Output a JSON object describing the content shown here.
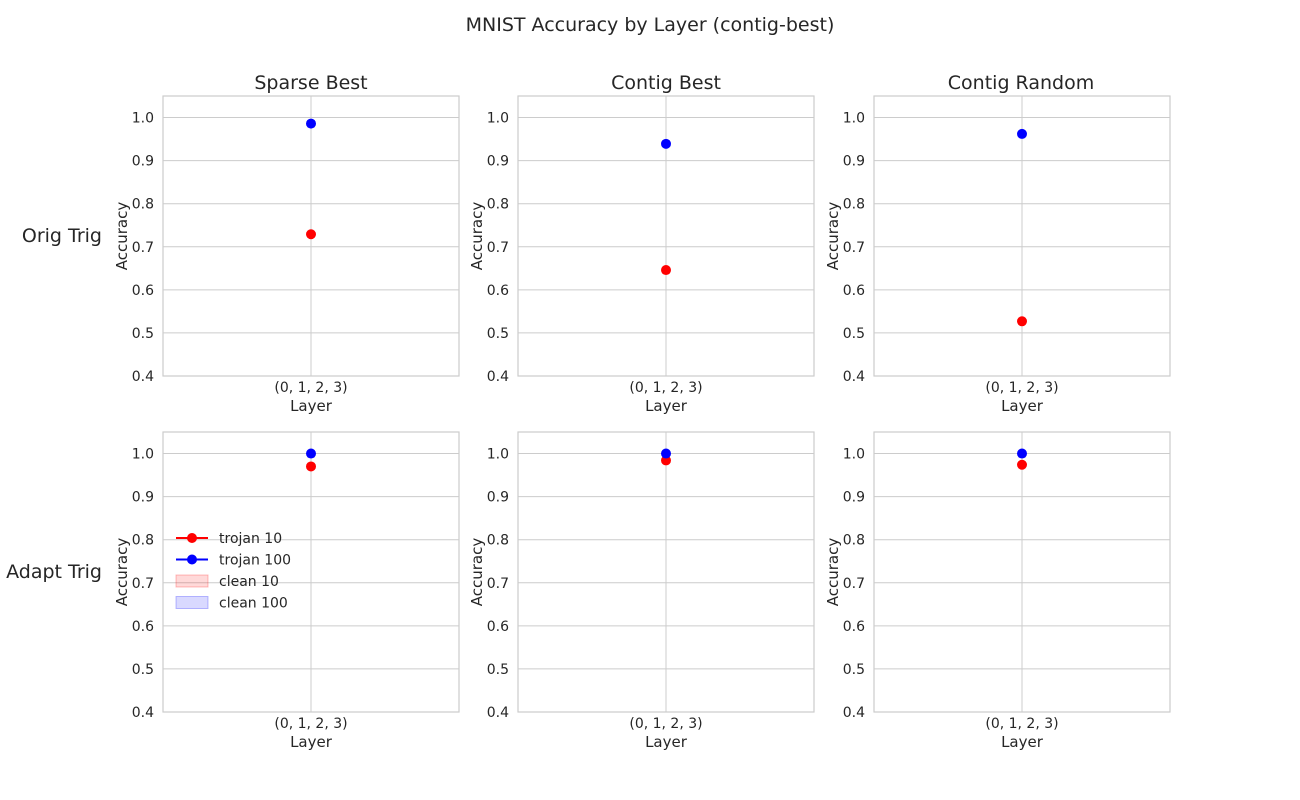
{
  "chart_data": {
    "type": "scatter",
    "title": "MNIST Accuracy by Layer (contig-best)",
    "columns": [
      "Sparse Best",
      "Contig Best",
      "Contig Random"
    ],
    "rows": [
      "Orig Trig",
      "Adapt Trig"
    ],
    "xlabel": "Layer",
    "ylabel": "Accuracy",
    "categories": [
      "(0, 1, 2, 3)"
    ],
    "ylim": [
      0.4,
      1.05
    ],
    "yticks": [
      "0.4",
      "0.5",
      "0.6",
      "0.7",
      "0.8",
      "0.9",
      "1.0"
    ],
    "grid": true,
    "legend": {
      "placement": "center-left of bottom-left panel",
      "entries": [
        {
          "label": "trojan 10",
          "color": "#ff0000",
          "kind": "line-marker"
        },
        {
          "label": "trojan 100",
          "color": "#0000ff",
          "kind": "line-marker"
        },
        {
          "label": "clean 10",
          "color": "#ff0000",
          "kind": "band"
        },
        {
          "label": "clean 100",
          "color": "#0000ff",
          "kind": "band"
        }
      ]
    },
    "panels": [
      {
        "row": "Orig Trig",
        "column": "Sparse Best",
        "series": [
          {
            "name": "trojan 10",
            "color": "#ff0000",
            "values": [
              0.729
            ]
          },
          {
            "name": "trojan 100",
            "color": "#0000ff",
            "values": [
              0.986
            ]
          }
        ]
      },
      {
        "row": "Orig Trig",
        "column": "Contig Best",
        "series": [
          {
            "name": "trojan 10",
            "color": "#ff0000",
            "values": [
              0.646
            ]
          },
          {
            "name": "trojan 100",
            "color": "#0000ff",
            "values": [
              0.939
            ]
          }
        ]
      },
      {
        "row": "Orig Trig",
        "column": "Contig Random",
        "series": [
          {
            "name": "trojan 10",
            "color": "#ff0000",
            "values": [
              0.527
            ]
          },
          {
            "name": "trojan 100",
            "color": "#0000ff",
            "values": [
              0.962
            ]
          }
        ]
      },
      {
        "row": "Adapt Trig",
        "column": "Sparse Best",
        "series": [
          {
            "name": "trojan 10",
            "color": "#ff0000",
            "values": [
              0.97
            ]
          },
          {
            "name": "trojan 100",
            "color": "#0000ff",
            "values": [
              1.0
            ]
          }
        ]
      },
      {
        "row": "Adapt Trig",
        "column": "Contig Best",
        "series": [
          {
            "name": "trojan 10",
            "color": "#ff0000",
            "values": [
              0.984
            ]
          },
          {
            "name": "trojan 100",
            "color": "#0000ff",
            "values": [
              1.0
            ]
          }
        ]
      },
      {
        "row": "Adapt Trig",
        "column": "Contig Random",
        "series": [
          {
            "name": "trojan 10",
            "color": "#ff0000",
            "values": [
              0.974
            ]
          },
          {
            "name": "trojan 100",
            "color": "#0000ff",
            "values": [
              1.0
            ]
          }
        ]
      }
    ]
  }
}
